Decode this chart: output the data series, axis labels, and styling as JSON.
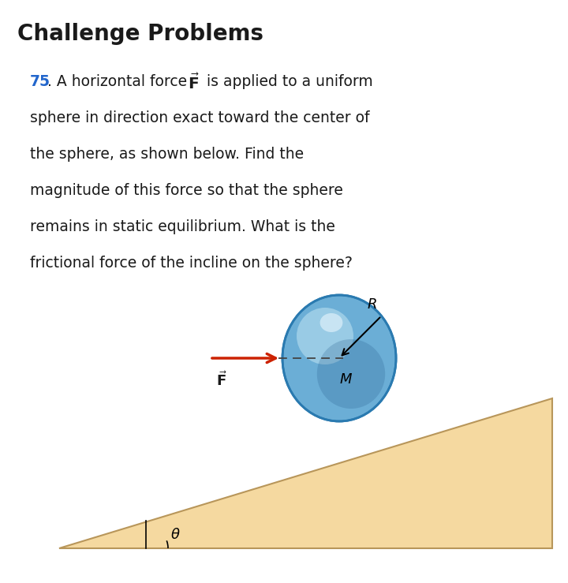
{
  "title": "Challenge Problems",
  "title_fontsize": 20,
  "title_fontweight": "bold",
  "bg_color": "#ffffff",
  "number_color": "#2266cc",
  "text_color": "#1a1a1a",
  "problem_number": "75",
  "problem_text_line1": ". A horizontal force ",
  "problem_text_after_F": " is applied to a uniform",
  "problem_line2": "sphere in direction exact toward the center of",
  "problem_line3": "the sphere, as shown below. Find the",
  "problem_line4": "magnitude of this force so that the sphere",
  "problem_line5": "remains in static equilibrium. What is the",
  "problem_line6": "frictional force of the incline on the sphere?",
  "incline_color": "#f5d9a0",
  "incline_edge_color": "#b8965a",
  "sphere_color_mid": "#6baed6",
  "sphere_color_light": "#b8dff0",
  "sphere_color_dark": "#2a6090",
  "sphere_color_edge": "#2a7ab0",
  "arrow_color": "#cc2200",
  "theta_label": "θ",
  "R_label": "R",
  "M_label": "M"
}
